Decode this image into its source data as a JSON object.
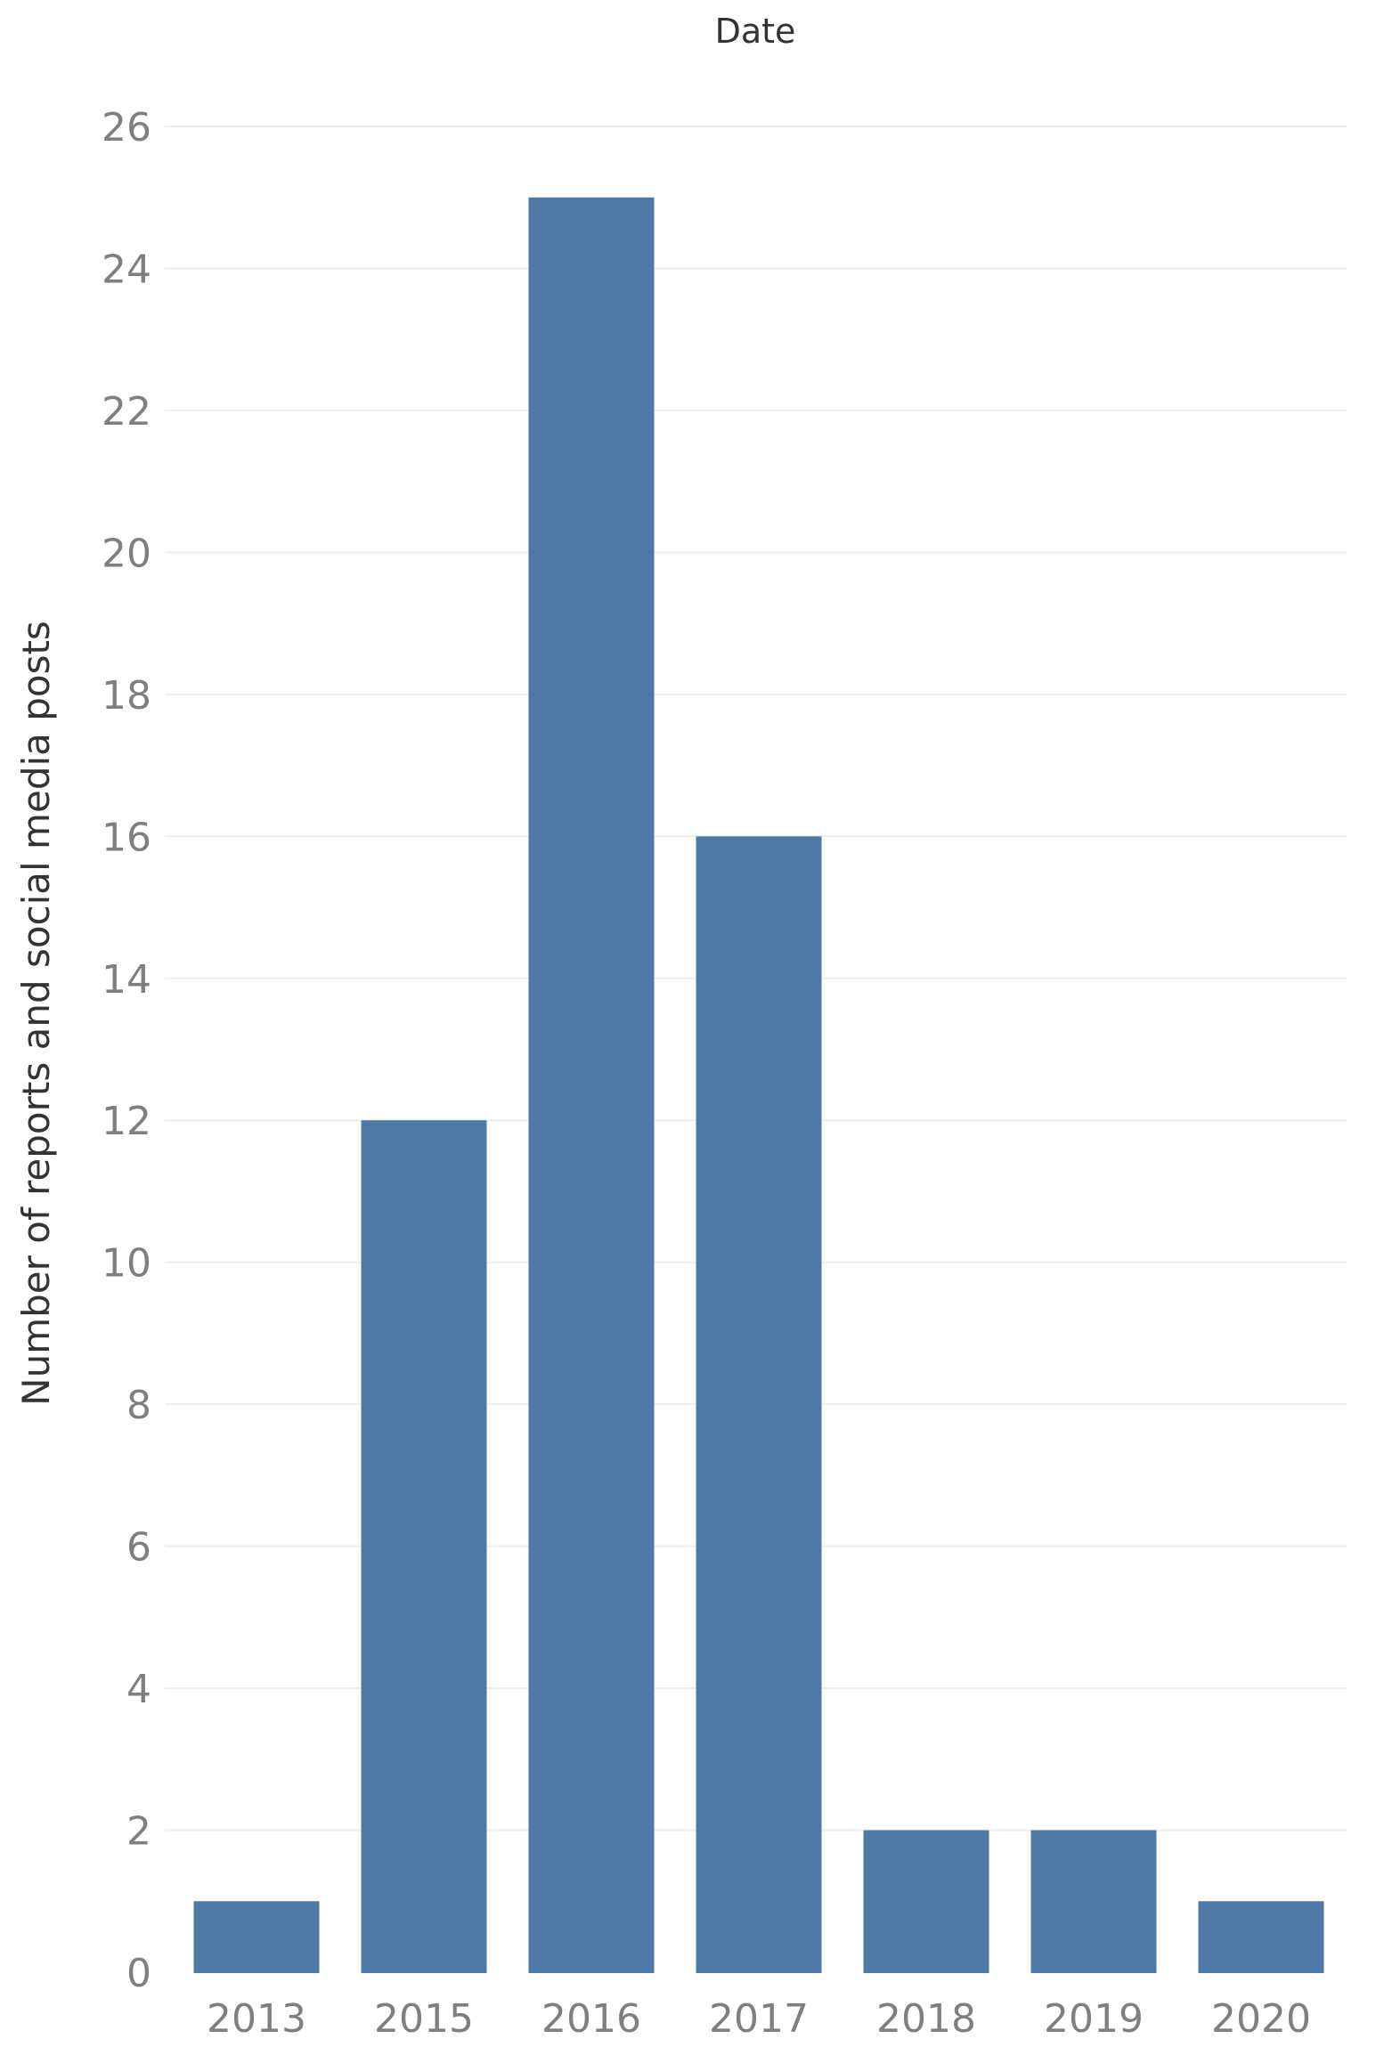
{
  "chart_data": {
    "type": "bar",
    "title": "Date",
    "xlabel": "",
    "ylabel": "Number of reports and social media posts",
    "categories": [
      "2013",
      "2015",
      "2016",
      "2017",
      "2018",
      "2019",
      "2020"
    ],
    "values": [
      1,
      12,
      25,
      16,
      2,
      2,
      1
    ],
    "ylim": [
      0,
      26
    ],
    "yticks": [
      0,
      2,
      4,
      6,
      8,
      10,
      12,
      14,
      16,
      18,
      20,
      22,
      24,
      26
    ],
    "grid": true,
    "bar_color": "#4e79a7"
  }
}
